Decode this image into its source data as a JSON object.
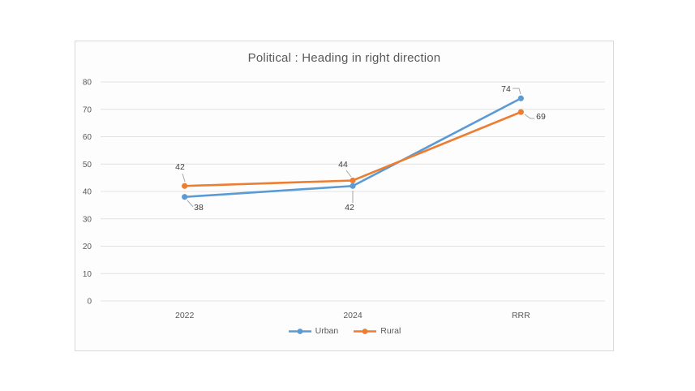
{
  "chart_data": {
    "type": "line",
    "title": "Political : Heading in right direction",
    "categories": [
      "2022",
      "2024",
      "RRR"
    ],
    "series": [
      {
        "name": "Urban",
        "color": "#5B9BD5",
        "values": [
          38,
          42,
          74
        ]
      },
      {
        "name": "Rural",
        "color": "#ED7D31",
        "values": [
          42,
          44,
          69
        ]
      }
    ],
    "xlabel": "",
    "ylabel": "",
    "ylim": [
      0,
      80
    ],
    "yticks": [
      0,
      10,
      20,
      30,
      40,
      50,
      60,
      70,
      80
    ],
    "grid": "horizontal",
    "legend_position": "bottom",
    "data_labels": true,
    "colors": {
      "grid": "#e2e2e2",
      "border": "#d9d9d9",
      "tick_text": "#595959",
      "label_text": "#404040",
      "leader_line": "#a6a6a6",
      "background": "#fdfdfd"
    }
  }
}
